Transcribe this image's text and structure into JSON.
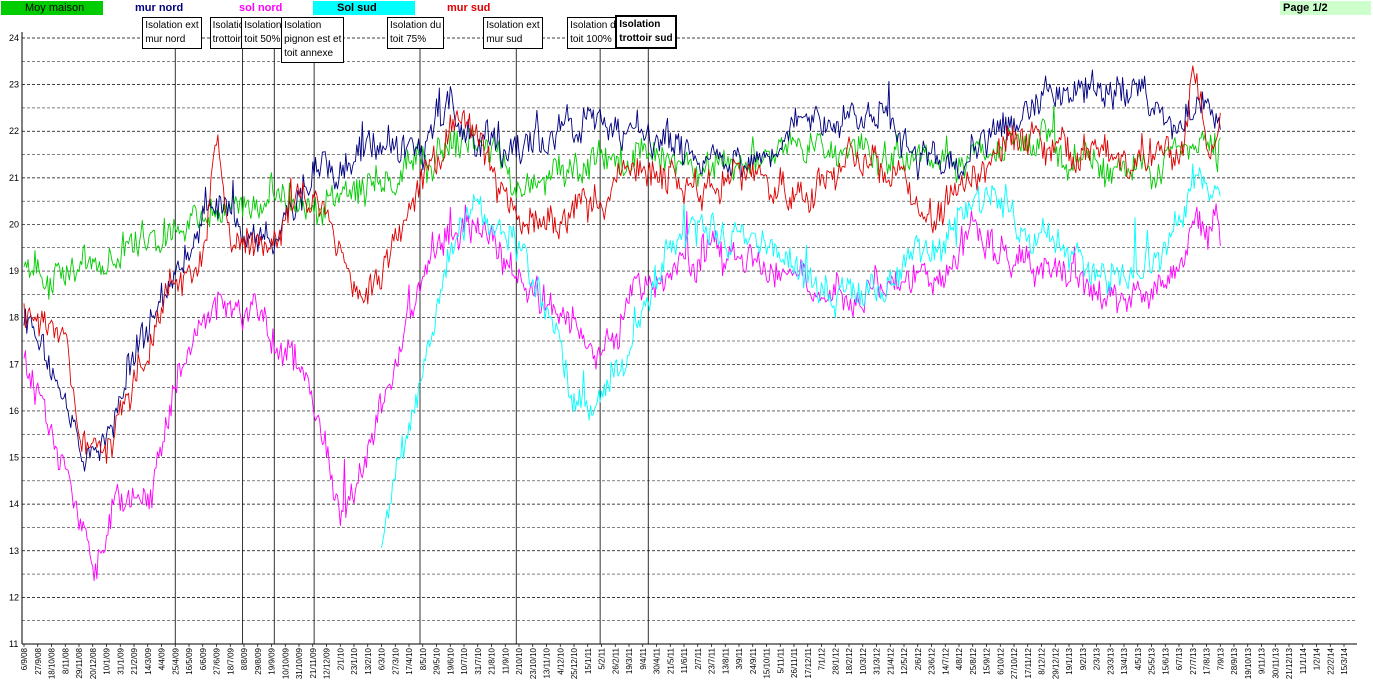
{
  "page_label": "Page 1/2",
  "chart_data": {
    "type": "line",
    "title": "",
    "xlabel": "",
    "ylabel": "",
    "ylim": [
      11,
      24
    ],
    "yticks": [
      11,
      12,
      13,
      14,
      15,
      16,
      17,
      18,
      19,
      20,
      21,
      22,
      23,
      24
    ],
    "grid": true,
    "x_tick_labels": [
      "6/9/08",
      "27/9/08",
      "18/10/08",
      "8/11/08",
      "29/11/08",
      "20/12/08",
      "10/1/09",
      "31/1/09",
      "21/2/09",
      "14/3/09",
      "4/4/09",
      "25/4/09",
      "16/5/09",
      "6/6/09",
      "27/6/09",
      "18/7/09",
      "8/8/09",
      "29/8/09",
      "19/9/09",
      "10/10/09",
      "31/10/09",
      "21/11/09",
      "12/12/09",
      "2/1/10",
      "23/1/10",
      "13/2/10",
      "6/3/10",
      "27/3/10",
      "17/4/10",
      "8/5/10",
      "29/5/10",
      "19/6/10",
      "10/7/10",
      "31/7/10",
      "21/8/10",
      "11/9/10",
      "2/10/10",
      "23/10/10",
      "13/11/10",
      "4/12/10",
      "25/12/10",
      "15/1/11",
      "5/2/11",
      "26/2/11",
      "19/3/11",
      "9/4/11",
      "30/4/11",
      "21/5/11",
      "11/6/11",
      "2/7/11",
      "23/7/11",
      "13/8/11",
      "3/9/11",
      "24/9/11",
      "15/10/11",
      "5/11/11",
      "26/11/11",
      "17/12/11",
      "7/1/12",
      "28/1/12",
      "18/2/12",
      "10/3/12",
      "31/3/12",
      "21/4/12",
      "12/5/12",
      "2/6/12",
      "23/6/12",
      "14/7/12",
      "4/8/12",
      "25/8/12",
      "15/9/12",
      "6/10/12",
      "27/10/12",
      "17/11/12",
      "8/12/12",
      "29/12/12",
      "19/1/13",
      "9/2/13",
      "2/3/13",
      "23/3/13",
      "13/4/13",
      "4/5/13",
      "25/5/13",
      "15/6/13",
      "6/7/13",
      "27/7/13",
      "17/8/13",
      "7/9/13",
      "28/9/13",
      "19/10/13",
      "9/11/13",
      "30/11/13",
      "21/12/13",
      "11/1/14",
      "1/2/14",
      "22/2/14",
      "15/3/14"
    ],
    "series": [
      {
        "name": "Moy maison",
        "color": "#00cc00",
        "legend_bg": "#00cc00",
        "keypoints": [
          [
            0,
            19.2
          ],
          [
            4,
            19.0
          ],
          [
            8,
            19.7
          ],
          [
            12,
            19.8
          ],
          [
            14,
            20.3
          ],
          [
            17,
            20.6
          ],
          [
            18,
            21.0
          ],
          [
            19,
            20.4
          ],
          [
            22,
            20.4
          ],
          [
            26,
            21.0
          ],
          [
            31,
            21.6
          ],
          [
            33,
            21.8
          ],
          [
            36,
            21.0
          ],
          [
            40,
            21.3
          ],
          [
            44,
            21.6
          ],
          [
            48,
            21.4
          ],
          [
            50,
            21.3
          ],
          [
            55,
            21.7
          ],
          [
            59,
            21.8
          ],
          [
            62,
            21.5
          ],
          [
            66,
            21.2
          ],
          [
            69,
            21.5
          ],
          [
            72,
            21.9
          ],
          [
            76,
            21.6
          ],
          [
            80,
            21.2
          ],
          [
            84,
            21.5
          ],
          [
            86,
            21.9
          ],
          [
            87,
            21.5
          ]
        ]
      },
      {
        "name": "mur nord",
        "color": "#000080",
        "legend_bg": "#ffffff",
        "keypoints": [
          [
            0,
            18.0
          ],
          [
            3,
            16.5
          ],
          [
            4,
            15.0
          ],
          [
            6,
            15.2
          ],
          [
            8,
            17.0
          ],
          [
            10,
            18.2
          ],
          [
            13,
            20.0
          ],
          [
            15,
            20.1
          ],
          [
            18,
            19.7
          ],
          [
            20,
            20.5
          ],
          [
            22,
            21.0
          ],
          [
            24,
            21.4
          ],
          [
            29,
            21.6
          ],
          [
            31,
            22.6
          ],
          [
            33,
            22.0
          ],
          [
            38,
            21.8
          ],
          [
            41,
            22.2
          ],
          [
            43,
            22.1
          ],
          [
            47,
            22.0
          ],
          [
            50,
            21.5
          ],
          [
            54,
            21.4
          ],
          [
            56,
            22.0
          ],
          [
            59,
            22.4
          ],
          [
            62,
            22.6
          ],
          [
            65,
            21.4
          ],
          [
            68,
            21.3
          ],
          [
            71,
            22.0
          ],
          [
            74,
            22.8
          ],
          [
            78,
            23.0
          ],
          [
            82,
            22.6
          ],
          [
            84,
            22.0
          ],
          [
            86,
            22.5
          ],
          [
            87,
            21.9
          ]
        ]
      },
      {
        "name": "sol nord",
        "color": "#ff00ff",
        "legend_bg": "#ffffff",
        "keypoints": [
          [
            0,
            17.2
          ],
          [
            2,
            15.5
          ],
          [
            4,
            13.6
          ],
          [
            5,
            12.6
          ],
          [
            7,
            14.2
          ],
          [
            9,
            14.2
          ],
          [
            11,
            16.5
          ],
          [
            13,
            18.2
          ],
          [
            15,
            18.5
          ],
          [
            18,
            17.5
          ],
          [
            20,
            17.0
          ],
          [
            22,
            15.4
          ],
          [
            23,
            13.5
          ],
          [
            25,
            15.0
          ],
          [
            27,
            17.0
          ],
          [
            30,
            19.5
          ],
          [
            33,
            20.0
          ],
          [
            36,
            18.8
          ],
          [
            38,
            18.3
          ],
          [
            40,
            17.5
          ],
          [
            42,
            17.0
          ],
          [
            44,
            18.6
          ],
          [
            47,
            18.8
          ],
          [
            50,
            19.4
          ],
          [
            54,
            19.2
          ],
          [
            57,
            18.6
          ],
          [
            60,
            18.3
          ],
          [
            62,
            18.5
          ],
          [
            65,
            18.9
          ],
          [
            67,
            19.1
          ],
          [
            69,
            19.8
          ],
          [
            71,
            19.4
          ],
          [
            75,
            19.0
          ],
          [
            79,
            18.3
          ],
          [
            82,
            18.4
          ],
          [
            84,
            18.8
          ],
          [
            85,
            20.2
          ],
          [
            87,
            19.8
          ]
        ]
      },
      {
        "name": "Sol sud",
        "color": "#00ffff",
        "legend_bg": "#00ffff",
        "start_index": 26,
        "keypoints": [
          [
            26,
            13.2
          ],
          [
            28,
            15.5
          ],
          [
            29,
            17.0
          ],
          [
            31,
            19.5
          ],
          [
            33,
            20.5
          ],
          [
            36,
            19.5
          ],
          [
            38,
            18.2
          ],
          [
            40,
            16.3
          ],
          [
            42,
            16.4
          ],
          [
            44,
            17.6
          ],
          [
            46,
            19.0
          ],
          [
            48,
            19.8
          ],
          [
            50,
            20.0
          ],
          [
            52,
            19.7
          ],
          [
            55,
            19.4
          ],
          [
            57,
            18.8
          ],
          [
            59,
            18.3
          ],
          [
            62,
            18.6
          ],
          [
            64,
            19.2
          ],
          [
            66,
            19.6
          ],
          [
            68,
            20.1
          ],
          [
            70,
            20.6
          ],
          [
            72,
            20.0
          ],
          [
            75,
            19.5
          ],
          [
            78,
            19.0
          ],
          [
            81,
            18.9
          ],
          [
            83,
            19.4
          ],
          [
            85,
            20.9
          ],
          [
            87,
            20.6
          ]
        ]
      },
      {
        "name": "mur sud",
        "color": "#e00000",
        "legend_bg": "#ffffff",
        "keypoints": [
          [
            0,
            18.0
          ],
          [
            3,
            17.5
          ],
          [
            4,
            15.5
          ],
          [
            5,
            15.0
          ],
          [
            7,
            15.7
          ],
          [
            9,
            17.5
          ],
          [
            11,
            18.6
          ],
          [
            13,
            19.2
          ],
          [
            14,
            21.8
          ],
          [
            15,
            19.8
          ],
          [
            18,
            19.8
          ],
          [
            20,
            20.6
          ],
          [
            22,
            20.2
          ],
          [
            24,
            18.5
          ],
          [
            26,
            19.0
          ],
          [
            29,
            21.0
          ],
          [
            31,
            22.0
          ],
          [
            33,
            21.8
          ],
          [
            35,
            20.5
          ],
          [
            37,
            20.0
          ],
          [
            39,
            20.0
          ],
          [
            42,
            20.5
          ],
          [
            44,
            21.5
          ],
          [
            46,
            21.2
          ],
          [
            48,
            20.8
          ],
          [
            51,
            21.0
          ],
          [
            54,
            21.0
          ],
          [
            57,
            20.6
          ],
          [
            60,
            21.2
          ],
          [
            62,
            21.3
          ],
          [
            65,
            20.4
          ],
          [
            67,
            20.4
          ],
          [
            69,
            21.2
          ],
          [
            72,
            21.8
          ],
          [
            75,
            21.8
          ],
          [
            78,
            21.8
          ],
          [
            81,
            21.6
          ],
          [
            84,
            21.2
          ],
          [
            85,
            23.0
          ],
          [
            86,
            21.5
          ],
          [
            87,
            22.2
          ]
        ]
      }
    ],
    "annotations": [
      {
        "text": "Isolation ext\nmur nord",
        "x_index": 11.0,
        "bold": false
      },
      {
        "text": "Isolation\ntrottoir nord",
        "x_index": 15.9,
        "bold": false
      },
      {
        "text": "Isolation du\ntoit 50%",
        "x_index": 18.2,
        "bold": false
      },
      {
        "text": "Isolation\npignon est et\ntoit annexe",
        "x_index": 21.1,
        "bold": false
      },
      {
        "text": "Isolation du\ntoit 75%",
        "x_index": 28.8,
        "bold": false
      },
      {
        "text": "Isolation ext\nmur sud",
        "x_index": 35.8,
        "bold": false
      },
      {
        "text": "Isolation du\ntoit 100%",
        "x_index": 41.9,
        "bold": false
      },
      {
        "text": "Isolation\ntrottoir sud",
        "x_index": 45.4,
        "bold": true
      }
    ]
  }
}
